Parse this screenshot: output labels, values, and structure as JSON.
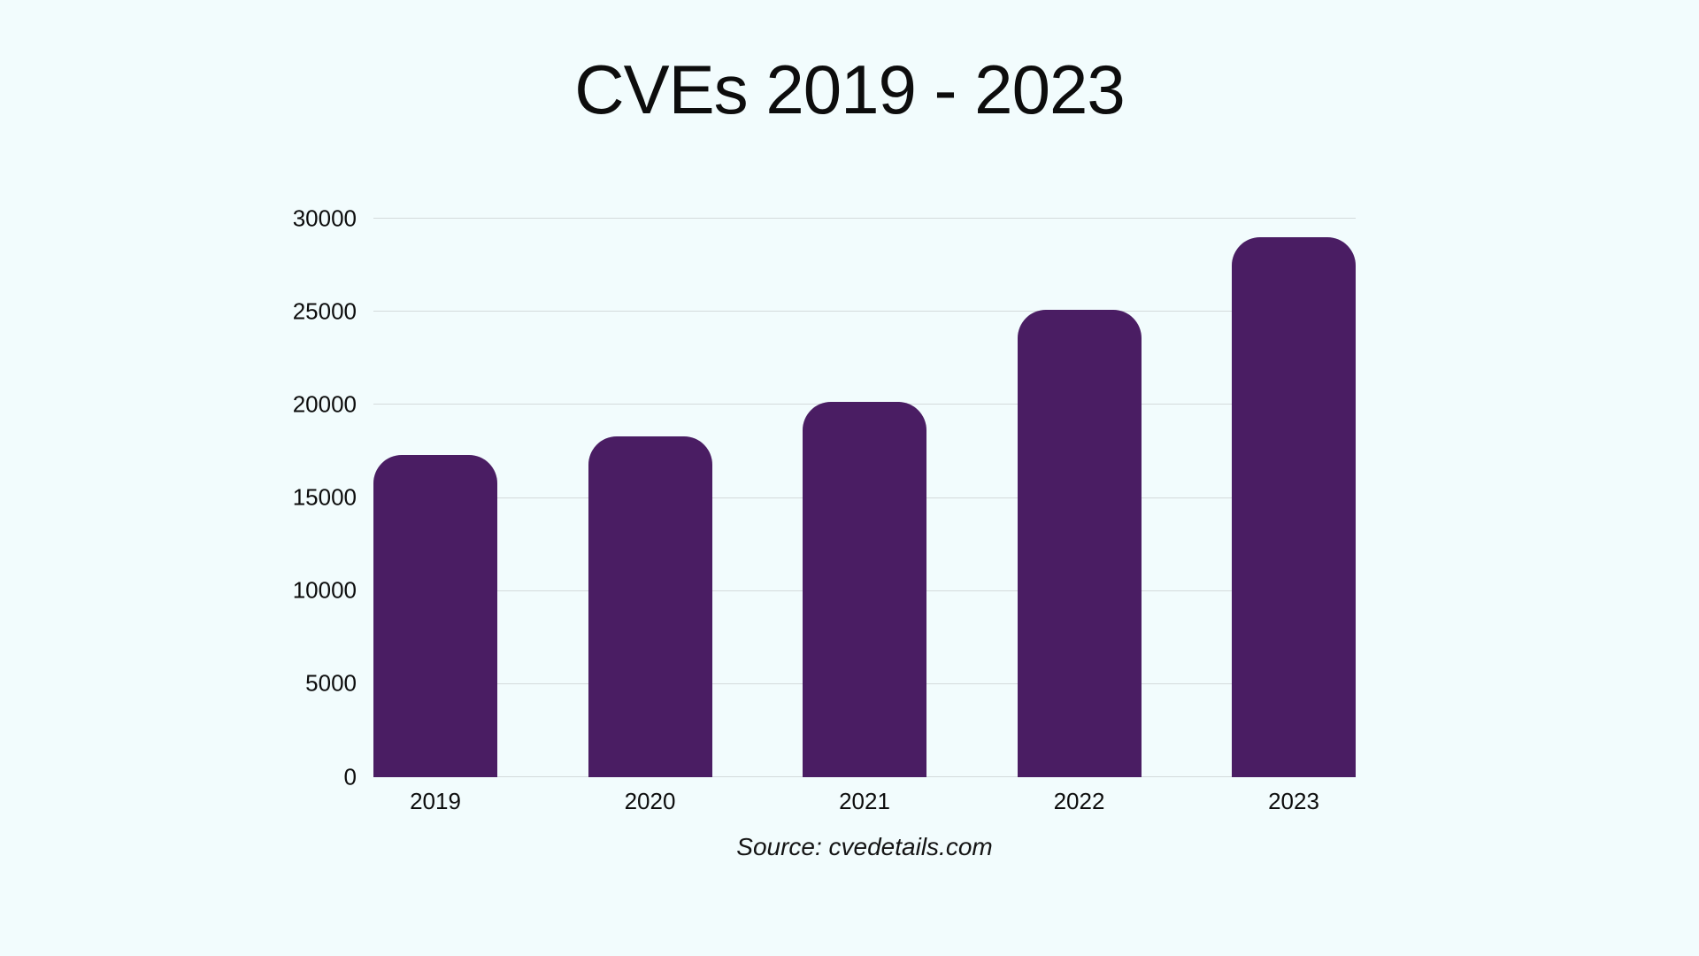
{
  "colors": {
    "background": "#f2fcfd",
    "bar": "#4a1d63",
    "gridline": "#d4dadb",
    "text": "#0d0d0d"
  },
  "chart_data": {
    "type": "bar",
    "title": "CVEs 2019 - 2023",
    "categories": [
      "2019",
      "2020",
      "2021",
      "2022",
      "2023"
    ],
    "values": [
      17300,
      18300,
      20150,
      25100,
      29000
    ],
    "xlabel": "",
    "ylabel": "",
    "ylim": [
      0,
      30000
    ],
    "yticks": [
      0,
      5000,
      10000,
      15000,
      20000,
      25000,
      30000
    ],
    "grid": true,
    "legend": false,
    "bar_color": "#4a1d63",
    "source_note": "Source: cvedetails.com"
  }
}
